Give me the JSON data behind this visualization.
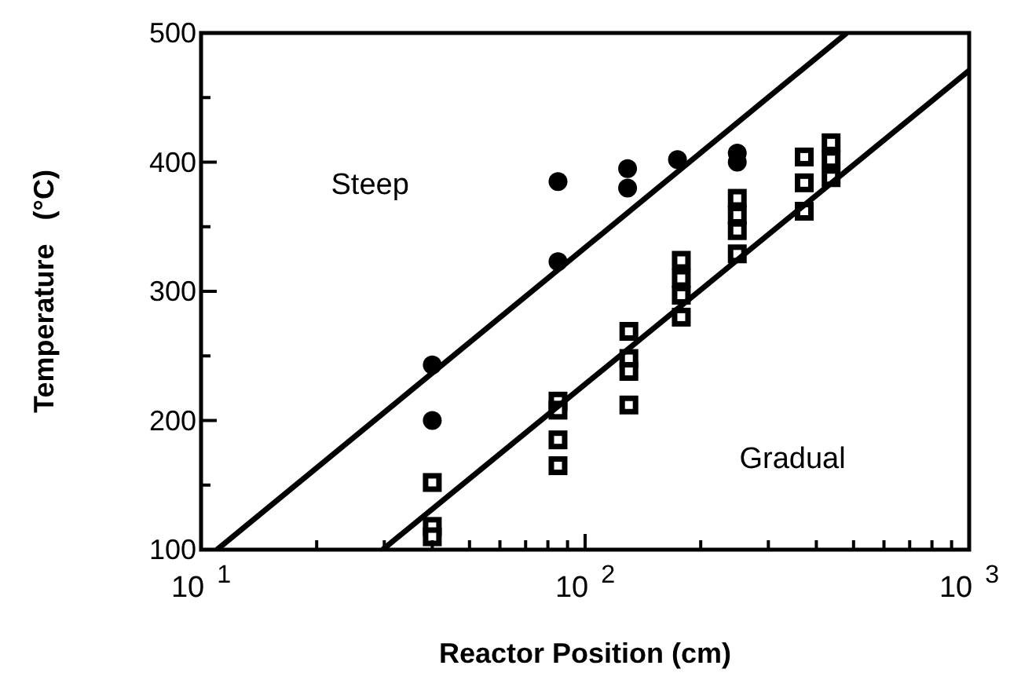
{
  "chart_data": {
    "type": "scatter",
    "xlabel": "Reactor Position (cm)",
    "ylabel": "Temperature   (°C)",
    "log": "x",
    "xlim": [
      10,
      1000
    ],
    "ylim": [
      100,
      500
    ],
    "xticks": [
      {
        "value": 10,
        "label": "10$^{1}$"
      },
      {
        "value": 20,
        "label": null
      },
      {
        "value": 30,
        "label": null
      },
      {
        "value": 40,
        "label": null
      },
      {
        "value": 50,
        "label": null
      },
      {
        "value": 60,
        "label": null
      },
      {
        "value": 70,
        "label": null
      },
      {
        "value": 80,
        "label": null
      },
      {
        "value": 90,
        "label": null
      },
      {
        "value": 100,
        "label": "10$^{2}$"
      },
      {
        "value": 200,
        "label": null
      },
      {
        "value": 300,
        "label": null
      },
      {
        "value": 400,
        "label": null
      },
      {
        "value": 500,
        "label": null
      },
      {
        "value": 600,
        "label": null
      },
      {
        "value": 700,
        "label": null
      },
      {
        "value": 800,
        "label": null
      },
      {
        "value": 900,
        "label": null
      },
      {
        "value": 1000,
        "label": "10$^{3}$"
      }
    ],
    "yticks": [
      100,
      {
        "value": 150,
        "label": null
      },
      200,
      {
        "value": 250,
        "label": null
      },
      300,
      {
        "value": 350,
        "label": null
      },
      400,
      {
        "value": 450,
        "label": null
      },
      500
    ],
    "grid": false,
    "series": [
      {
        "marker": "circle",
        "color": "#000000",
        "x": [
          40,
          40,
          85,
          85,
          129,
          129,
          174,
          249,
          249
        ],
        "values": [
          243,
          200,
          385,
          323,
          395,
          380,
          402,
          407,
          400
        ]
      },
      {
        "marker": "square",
        "color": "#000000",
        "x": [
          40,
          40,
          40,
          85,
          85,
          85,
          85,
          130,
          130,
          130,
          130,
          178,
          178,
          178,
          178,
          249,
          249,
          249,
          249,
          372,
          372,
          372,
          437,
          437,
          437
        ],
        "values": [
          152,
          118,
          110,
          215,
          208,
          185,
          165,
          269,
          248,
          238,
          212,
          324,
          310,
          297,
          280,
          372,
          359,
          347,
          329,
          404,
          384,
          362,
          415,
          402,
          388
        ]
      },
      {
        "type": "line",
        "line_style": "solid",
        "color": "#000000",
        "x": [
          11,
          480
        ],
        "values": [
          100,
          500
        ]
      },
      {
        "type": "line",
        "line_style": "solid",
        "color": "#000000",
        "x": [
          29.7,
          1000
        ],
        "values": [
          100,
          471
        ]
      }
    ],
    "annotations": [
      "Steep",
      "Gradual"
    ]
  }
}
